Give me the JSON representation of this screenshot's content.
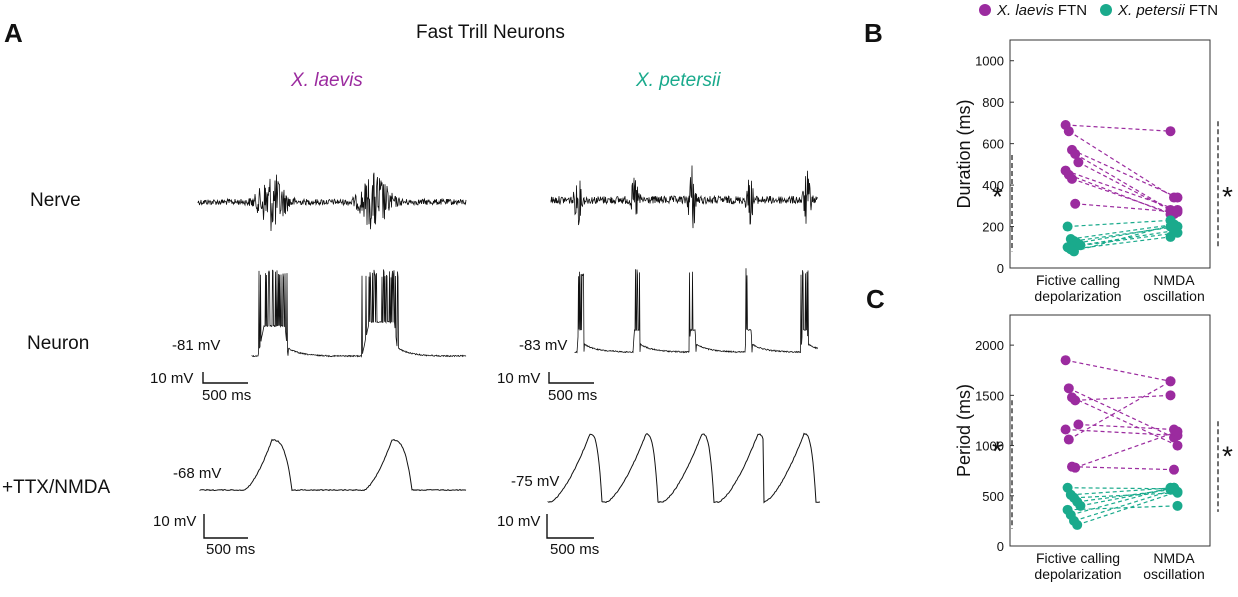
{
  "panels": {
    "a": {
      "letter": "A",
      "title": "Fast Trill Neurons",
      "species": [
        {
          "name": "X. laevis",
          "color": "#9b2b9f"
        },
        {
          "name": "X. petersii",
          "color": "#1aaa8c"
        }
      ],
      "rows": [
        "Nerve",
        "Neuron",
        "+TTX/NMDA"
      ],
      "potentials": {
        "laevis_neuron": "-81 mV",
        "laevis_ttx": "-68 mV",
        "petersii_neuron": "-83 mV",
        "petersii_ttx": "-75 mV"
      },
      "scale_bars": {
        "voltage": "10 mV",
        "time": "500 ms"
      }
    },
    "b": {
      "letter": "B"
    },
    "c": {
      "letter": "C"
    }
  },
  "legend": {
    "items": [
      {
        "name": "X. laevis",
        "suffix": " FTN",
        "color": "#9b2b9f"
      },
      {
        "name": "X. petersii",
        "suffix": " FTN",
        "color": "#1aaa8c"
      }
    ]
  },
  "chart_data": [
    {
      "type": "scatter",
      "panel": "B",
      "ylabel": "Duration (ms)",
      "ylim": [
        0,
        1100
      ],
      "yticks": [
        0,
        200,
        400,
        600,
        800,
        1000
      ],
      "categories": [
        "Fictive calling depolarization",
        "NMDA oscillation"
      ],
      "category_lines": [
        [
          "Fictive calling",
          "depolarization"
        ],
        [
          "NMDA",
          "oscillation"
        ]
      ],
      "paired_lines": "dashed",
      "significance": "*",
      "series": [
        {
          "name": "X. laevis FTN",
          "color": "#9b2b9f",
          "pairs": [
            [
              690,
              660
            ],
            [
              660,
              340
            ],
            [
              570,
              340
            ],
            [
              550,
              280
            ],
            [
              510,
              270
            ],
            [
              470,
              280
            ],
            [
              450,
              260
            ],
            [
              430,
              260
            ],
            [
              310,
              270
            ]
          ]
        },
        {
          "name": "X. petersii FTN",
          "color": "#1aaa8c",
          "pairs": [
            [
              200,
              230
            ],
            [
              140,
              210
            ],
            [
              130,
              200
            ],
            [
              120,
              200
            ],
            [
              110,
              180
            ],
            [
              100,
              170
            ],
            [
              90,
              150
            ],
            [
              80,
              210
            ]
          ]
        }
      ]
    },
    {
      "type": "scatter",
      "panel": "C",
      "ylabel": "Period (ms)",
      "ylim": [
        0,
        2300
      ],
      "yticks": [
        0,
        500,
        1000,
        1500,
        2000
      ],
      "categories": [
        "Fictive calling depolarization",
        "NMDA oscillation"
      ],
      "category_lines": [
        [
          "Fictive calling",
          "depolarization"
        ],
        [
          "NMDA",
          "oscillation"
        ]
      ],
      "paired_lines": "dashed",
      "significance": "*",
      "series": [
        {
          "name": "X. laevis FTN",
          "color": "#9b2b9f",
          "pairs": [
            [
              1850,
              1640
            ],
            [
              1570,
              1080
            ],
            [
              1480,
              1000
            ],
            [
              1450,
              1500
            ],
            [
              1210,
              1160
            ],
            [
              1160,
              1100
            ],
            [
              1060,
              1640
            ],
            [
              790,
              760
            ],
            [
              780,
              1140
            ]
          ]
        },
        {
          "name": "X. petersii FTN",
          "color": "#1aaa8c",
          "pairs": [
            [
              580,
              570
            ],
            [
              510,
              580
            ],
            [
              480,
              530
            ],
            [
              440,
              560
            ],
            [
              400,
              580
            ],
            [
              360,
              400
            ],
            [
              310,
              580
            ],
            [
              250,
              560
            ],
            [
              210,
              540
            ]
          ]
        }
      ]
    }
  ]
}
